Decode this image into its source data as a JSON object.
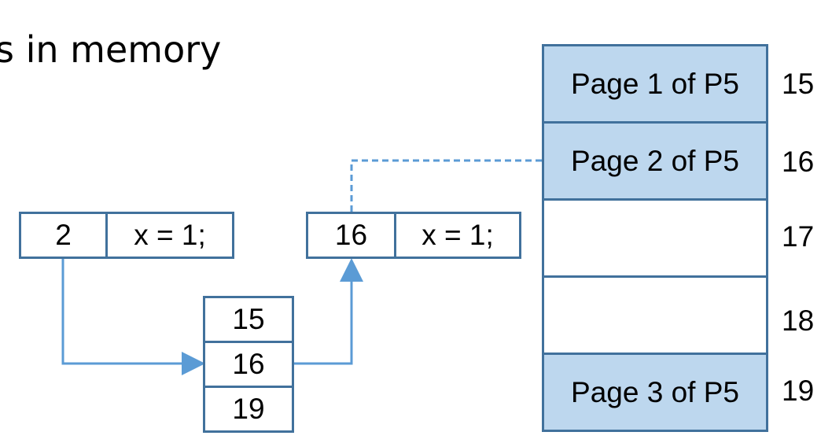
{
  "title": "s in memory",
  "instruction_left": {
    "page": "2",
    "code": "x = 1;"
  },
  "instruction_right": {
    "frame": "16",
    "code": "x = 1;"
  },
  "page_table": [
    "15",
    "16",
    "19"
  ],
  "memory": {
    "frames": [
      {
        "label": "Page 1 of P5",
        "addr": "15",
        "filled": true
      },
      {
        "label": "Page 2 of P5",
        "addr": "16",
        "filled": true
      },
      {
        "label": "",
        "addr": "17",
        "filled": false
      },
      {
        "label": "",
        "addr": "18",
        "filled": false
      },
      {
        "label": "Page 3 of P5",
        "addr": "19",
        "filled": true
      }
    ]
  },
  "colors": {
    "border": "#41719C",
    "arrow": "#5B9BD5",
    "fill": "#BDD7EE"
  }
}
